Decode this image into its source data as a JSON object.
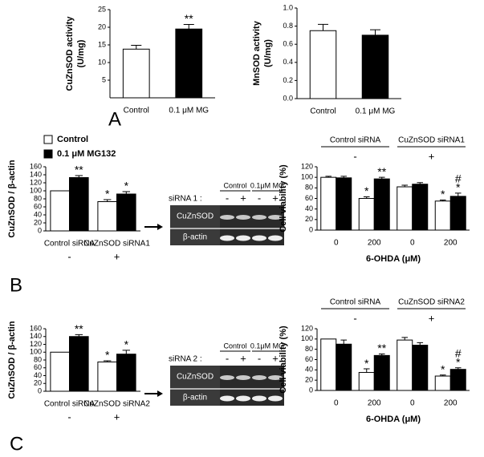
{
  "panel_labels": [
    "A",
    "B",
    "C"
  ],
  "blots": [
    {
      "lane_label": "siRNA 1 :",
      "lane_signs": [
        "-",
        "+",
        "-",
        "+"
      ],
      "conditions": [
        "Control",
        "0.1μM MG"
      ],
      "bands": [
        "CuZnSOD",
        "β-actin"
      ]
    },
    {
      "lane_label": "siRNA 2 :",
      "lane_signs": [
        "-",
        "+",
        "-",
        "+"
      ],
      "conditions": [
        "Control",
        "0.1μM MG"
      ],
      "bands": [
        "CuZnSOD",
        "β-actin"
      ]
    }
  ],
  "chart_data": [
    {
      "type": "bar",
      "ylabel": [
        "CuZnSOD activity",
        "(U/mg)"
      ],
      "categories": [
        "Control",
        "0.1 μM MG"
      ],
      "values": [
        13.8,
        19.5
      ],
      "errors": [
        1.1,
        1.3
      ],
      "colors": [
        "#ffffff",
        "#000000"
      ],
      "significance": [
        null,
        "**"
      ],
      "ylim": [
        0,
        25
      ],
      "yticks": [
        5,
        10,
        15,
        20,
        25
      ]
    },
    {
      "type": "bar",
      "ylabel": [
        "MnSOD activity",
        "(U/mg)"
      ],
      "categories": [
        "Control",
        "0.1 μM MG"
      ],
      "values": [
        0.75,
        0.7
      ],
      "errors": [
        0.07,
        0.06
      ],
      "colors": [
        "#ffffff",
        "#000000"
      ],
      "significance": [
        null,
        null
      ],
      "ylim": [
        0,
        1.0
      ],
      "yticks": [
        {
          "value": 0,
          "label": "0.0"
        },
        {
          "value": 0.2,
          "label": "0.2"
        },
        {
          "value": 0.4,
          "label": "0.4"
        },
        {
          "value": 0.6,
          "label": "0.6"
        },
        {
          "value": 0.8,
          "label": "0.8"
        },
        {
          "value": 1.0,
          "label": "1.0"
        }
      ]
    },
    {
      "type": "bar",
      "ylabel": "CuZnSOD / β-actin",
      "categories": [
        "Control siRNA",
        "CuZnSOD siRNA1"
      ],
      "category_signs": [
        "-",
        "+"
      ],
      "series": [
        {
          "name": "Control",
          "color": "#ffffff",
          "values": [
            100,
            73
          ],
          "errors": [
            0,
            5
          ],
          "significance": [
            null,
            "*"
          ]
        },
        {
          "name": "0.1 μM MG132",
          "color": "#000000",
          "values": [
            133,
            92
          ],
          "errors": [
            5,
            6
          ],
          "significance": [
            "**",
            "*"
          ]
        }
      ],
      "ylim": [
        0,
        160
      ],
      "yticks": [
        0,
        20,
        40,
        60,
        80,
        100,
        120,
        140,
        160
      ]
    },
    {
      "type": "bar",
      "ylabel": "Cell viability (%)",
      "xlabel": "6-OHDA (μM)",
      "categories": [
        "0",
        "200",
        "0",
        "200"
      ],
      "groups": [
        {
          "name": "Control siRNA",
          "sign": "-"
        },
        {
          "name": "CuZnSOD siRNA1",
          "sign": "+"
        }
      ],
      "series": [
        {
          "color": "#ffffff",
          "values": [
            100,
            60,
            82,
            55
          ],
          "errors": [
            2,
            3,
            3,
            2
          ],
          "significance": [
            null,
            "*",
            null,
            "*"
          ]
        },
        {
          "color": "#000000",
          "values": [
            99,
            97,
            87,
            64
          ],
          "errors": [
            3,
            3,
            3,
            6
          ],
          "significance": [
            null,
            "**",
            null,
            [
              "#",
              "*"
            ]
          ]
        }
      ],
      "ylim": [
        0,
        120
      ],
      "yticks": [
        0,
        20,
        40,
        60,
        80,
        100,
        120
      ]
    },
    {
      "type": "bar",
      "ylabel": "CuZnSOD / β-actin",
      "categories": [
        "Control siRNA",
        "CuZnSOD siRNA2"
      ],
      "category_signs": [
        "-",
        "+"
      ],
      "series": [
        {
          "color": "#ffffff",
          "values": [
            100,
            75
          ],
          "errors": [
            0,
            3
          ],
          "significance": [
            null,
            "*"
          ]
        },
        {
          "color": "#000000",
          "values": [
            140,
            95
          ],
          "errors": [
            5,
            10
          ],
          "significance": [
            "**",
            "*"
          ]
        }
      ],
      "ylim": [
        0,
        160
      ],
      "yticks": [
        0,
        20,
        40,
        60,
        80,
        100,
        120,
        140,
        160
      ]
    },
    {
      "type": "bar",
      "ylabel": "Cell viability (%)",
      "xlabel": "6-OHDA (μM)",
      "categories": [
        "0",
        "200",
        "0",
        "200"
      ],
      "groups": [
        {
          "name": "Control siRNA",
          "sign": "-"
        },
        {
          "name": "CuZnSOD siRNA2",
          "sign": "+"
        }
      ],
      "series": [
        {
          "color": "#ffffff",
          "values": [
            100,
            35,
            98,
            28
          ],
          "errors": [
            0,
            7,
            5,
            2
          ],
          "significance": [
            null,
            "*",
            null,
            "*"
          ]
        },
        {
          "color": "#000000",
          "values": [
            90,
            68,
            88,
            41
          ],
          "errors": [
            8,
            3,
            5,
            3
          ],
          "significance": [
            null,
            "**",
            null,
            [
              "#",
              "*"
            ]
          ]
        }
      ],
      "ylim": [
        0,
        120
      ],
      "yticks": [
        0,
        20,
        40,
        60,
        80,
        100,
        120
      ]
    }
  ]
}
